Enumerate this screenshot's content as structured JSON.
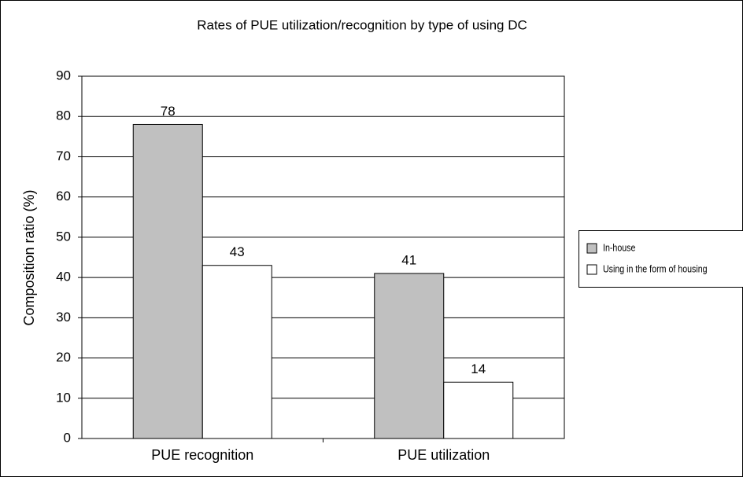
{
  "chart_data": {
    "type": "bar",
    "title": "Rates of PUE utilization/recognition by type of using DC",
    "y_label": "Composition ratio (%)",
    "categories": [
      "PUE recognition",
      "PUE utilization"
    ],
    "series": [
      {
        "name": "In-house",
        "color": "#c0c0c0",
        "values": [
          78,
          41
        ]
      },
      {
        "name": "Using in the form of housing",
        "color": "#ffffff",
        "values": [
          43,
          14
        ]
      }
    ],
    "ylim": [
      0,
      90
    ],
    "yticks": [
      0,
      10,
      20,
      30,
      40,
      50,
      60,
      70,
      80,
      90
    ],
    "grid": true,
    "legend": "right"
  }
}
